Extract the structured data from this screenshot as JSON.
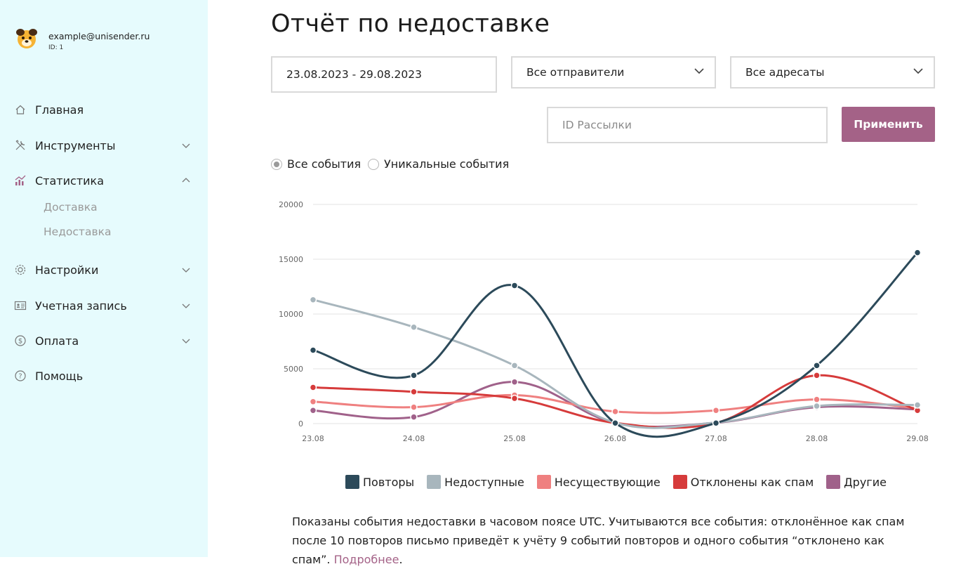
{
  "account": {
    "email": "example@unisender.ru",
    "id": "ID: 1"
  },
  "sidebar": {
    "items": [
      {
        "label": "Главная"
      },
      {
        "label": "Инструменты"
      },
      {
        "label": "Статистика"
      },
      {
        "label": "Настройки"
      },
      {
        "label": "Учетная запись"
      },
      {
        "label": "Оплата"
      },
      {
        "label": "Помощь"
      }
    ],
    "sub_items": [
      {
        "label": "Доставка"
      },
      {
        "label": "Недоставка"
      }
    ]
  },
  "page": {
    "title": "Отчёт по недоставке"
  },
  "filters": {
    "date_range": "23.08.2023 - 29.08.2023",
    "senders": "Все отправители",
    "recipients": "Все адресаты",
    "mailing_id_placeholder": "ID Рассылки",
    "apply_label": "Применить"
  },
  "event_mode": {
    "all_label": "Все события",
    "unique_label": "Уникальные события",
    "selected": "all"
  },
  "colors": {
    "accent": "#a46287",
    "sidebar_bg": "#e6fbfd",
    "series": [
      "#2c4a5a",
      "#a8b6bd",
      "#ef8080",
      "#d63b3b",
      "#a0618a"
    ]
  },
  "chart_data": {
    "type": "line",
    "categories": [
      "23.08",
      "24.08",
      "25.08",
      "26.08",
      "27.08",
      "28.08",
      "29.08"
    ],
    "ylim": [
      0,
      20000
    ],
    "yticks": [
      "20000",
      "15000",
      "10000",
      "5000",
      "0"
    ],
    "grid": true,
    "legend_position": "bottom",
    "series": [
      {
        "name": "Повторы",
        "values": [
          6700,
          4400,
          12600,
          50,
          50,
          5300,
          15600
        ]
      },
      {
        "name": "Недоступные",
        "values": [
          11300,
          8800,
          5300,
          80,
          100,
          1600,
          1700
        ]
      },
      {
        "name": "Несуществующие",
        "values": [
          2000,
          1500,
          2600,
          1100,
          1200,
          2200,
          1400
        ]
      },
      {
        "name": "Отклонены как спам",
        "values": [
          3300,
          2900,
          2300,
          60,
          60,
          4400,
          1200
        ]
      },
      {
        "name": "Другие",
        "values": [
          1200,
          600,
          3800,
          70,
          80,
          1500,
          1300
        ]
      }
    ]
  },
  "note": {
    "text": "Показаны события недоставки в часовом поясе UTC. Учитываются все события: отклонённое как спам после 10 повторов письмо приведёт к учёту 9 событий повторов и одного события “отклонено как спам”. ",
    "link": "Подробнее",
    "suffix": "."
  }
}
